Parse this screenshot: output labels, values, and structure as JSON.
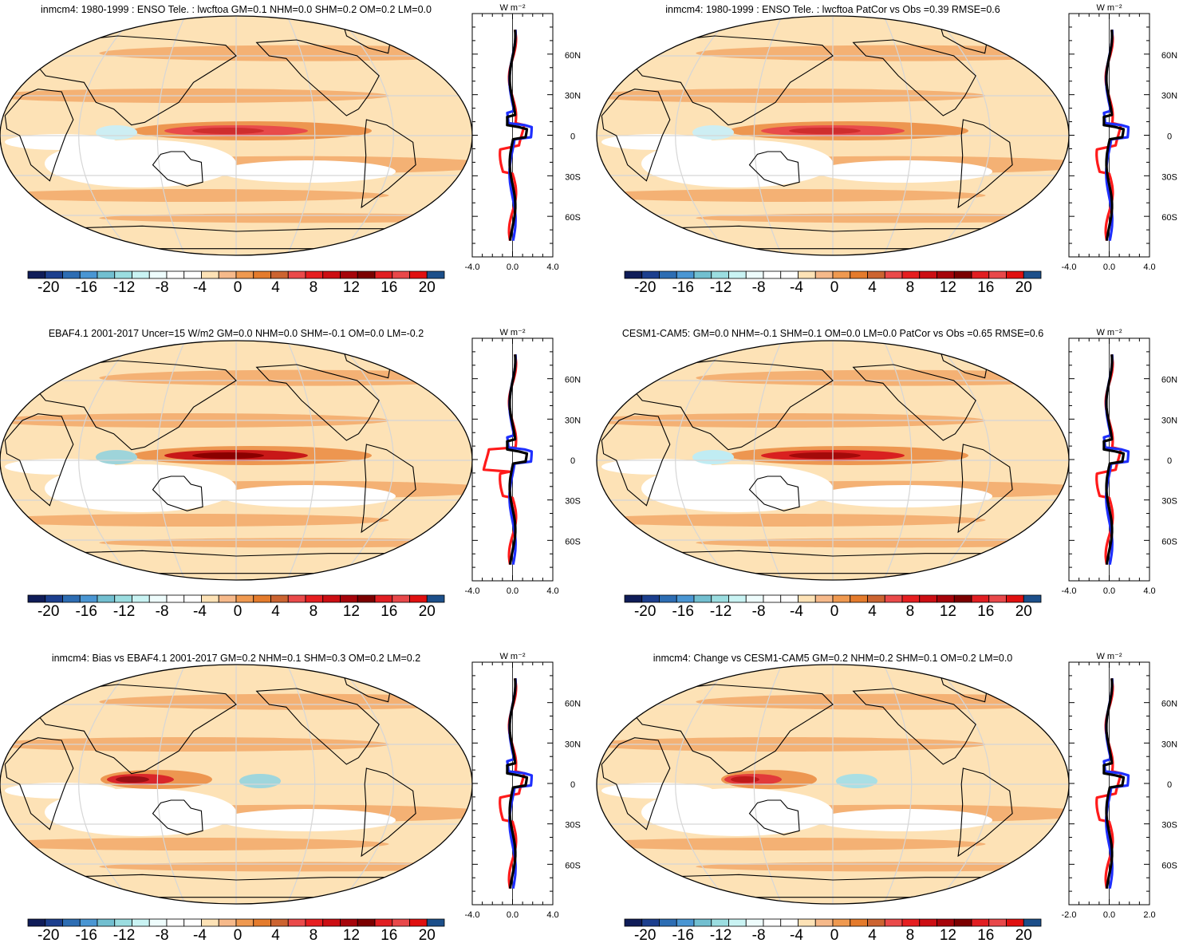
{
  "panels": [
    {
      "id": "p1",
      "title": "inmcm4: 1980-1999 : ENSO Tele. : lwcftoa GM=0.1 NHM=0.0 SHM=0.2 OM=0.2 LM=0.0",
      "zonal_ticks": [
        "-4.0",
        "0.0",
        "4.0"
      ],
      "zonal_range": [
        -4,
        4
      ],
      "pattern": "model"
    },
    {
      "id": "p2",
      "title": "inmcm4: 1980-1999 : ENSO Tele. : lwcftoa PatCor vs Obs =0.39 RMSE=0.6",
      "zonal_ticks": [
        "-4.0",
        "0.0",
        "4.0"
      ],
      "zonal_range": [
        -4,
        4
      ],
      "pattern": "model"
    },
    {
      "id": "p3",
      "title": "EBAF4.1 2001-2017 Uncer=15 W/m2 GM=0.0 NHM=0.0 SHM=-0.1 OM=0.0 LM=-0.2",
      "zonal_ticks": [
        "-4.0",
        "0.0",
        "4.0"
      ],
      "zonal_range": [
        -4,
        4
      ],
      "pattern": "obs"
    },
    {
      "id": "p4",
      "title": "CESM1-CAM5: GM=0.0 NHM=-0.1 SHM=0.1 OM=0.0 LM=0.0 PatCor vs Obs =0.65 RMSE=0.6",
      "zonal_ticks": [
        "-4.0",
        "0.0",
        "4.0"
      ],
      "zonal_range": [
        -4,
        4
      ],
      "pattern": "cesm"
    },
    {
      "id": "p5",
      "title": "inmcm4: Bias vs EBAF4.1 2001-2017 GM=0.2 NHM=0.1 SHM=0.3 OM=0.2 LM=0.2",
      "zonal_ticks": [
        "-4.0",
        "0.0",
        "4.0"
      ],
      "zonal_range": [
        -4,
        4
      ],
      "pattern": "bias"
    },
    {
      "id": "p6",
      "title": "inmcm4: Change vs CESM1-CAM5 GM=0.2 NHM=0.2 SHM=0.1 OM=0.2 LM=0.0",
      "zonal_ticks": [
        "-2.0",
        "0.0",
        "2.0"
      ],
      "zonal_range": [
        -2,
        2
      ],
      "pattern": "change"
    }
  ],
  "zonal_units": "W m⁻²",
  "lat_labels": [
    "60N",
    "30N",
    "0",
    "30S",
    "60S"
  ],
  "lat_values": [
    60,
    30,
    0,
    -30,
    -60
  ],
  "colorbar": {
    "labels": [
      "-20",
      "-16",
      "-12",
      "-8",
      "-4",
      "0",
      "4",
      "8",
      "12",
      "16",
      "20"
    ],
    "colors": [
      "#0f1c58",
      "#1c3f8e",
      "#2d6db3",
      "#4a96d3",
      "#72bfd0",
      "#9bdde0",
      "#c9f3f3",
      "#eefcfc",
      "#ffffff",
      "#ffffff",
      "#fde2b6",
      "#f6b98a",
      "#ef9950",
      "#e47b2c",
      "#cc6431",
      "#ea4a4a",
      "#e61e20",
      "#cc0e13",
      "#a6040a",
      "#7b0000",
      "#e11e22",
      "#e8484a",
      "#e01010",
      "#1c4f8a"
    ]
  },
  "chart_data": {
    "type": "map-panels",
    "projection": "Robinson, centered 180E",
    "variable": "lwcftoa ENSO teleconnection",
    "colorbar_range": [
      -20,
      20
    ],
    "zonal_mean_series": [
      "model (black)",
      "model 2 (blue)",
      "observations (red)"
    ],
    "lat_ticks": [
      60,
      30,
      0,
      -30,
      -60
    ]
  }
}
